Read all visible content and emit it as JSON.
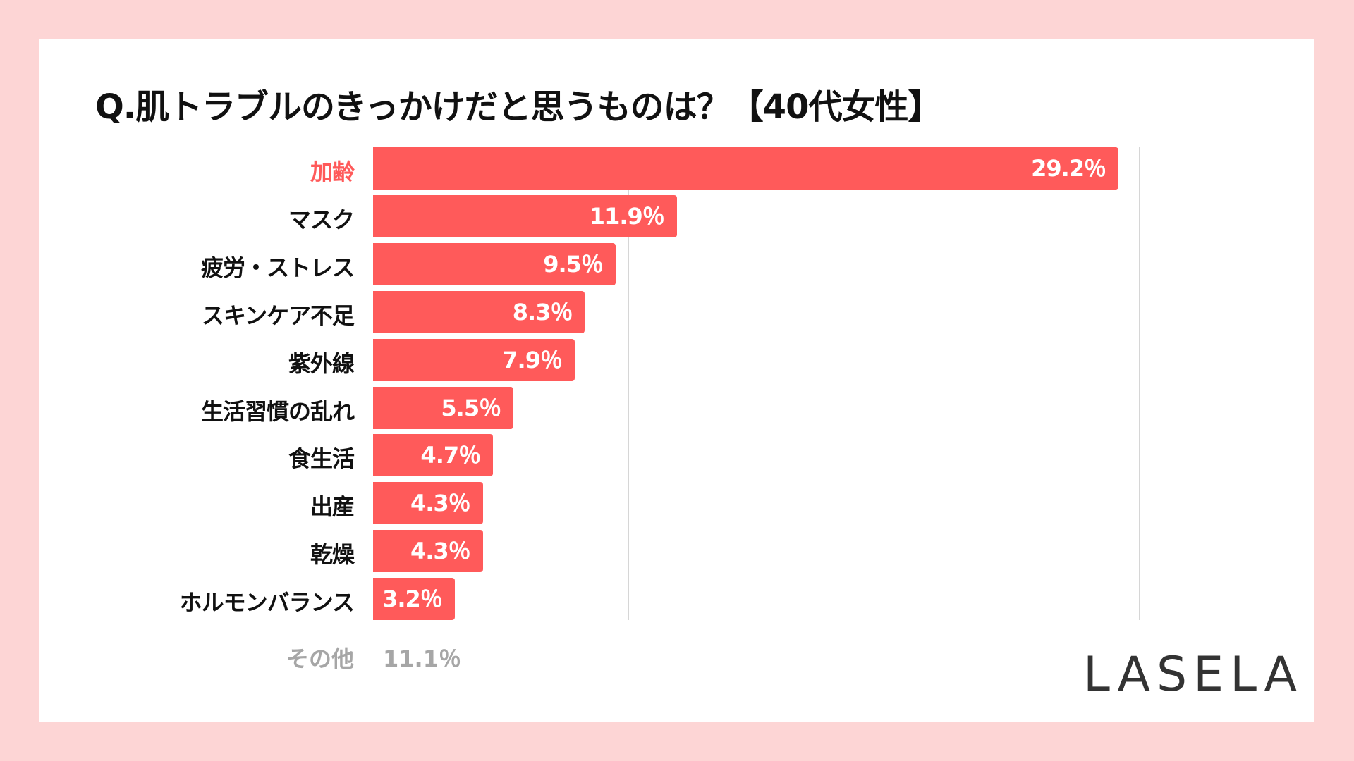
{
  "chart_data": {
    "type": "bar",
    "orientation": "horizontal",
    "title": "Q.肌トラブルのきっかけだと思うものは？【40代女性】",
    "categories": [
      "加齢",
      "マスク",
      "疲労・ストレス",
      "スキンケア不足",
      "紫外線",
      "生活習慣の乱れ",
      "食生活",
      "出産",
      "乾燥",
      "ホルモンバランス"
    ],
    "values": [
      29.2,
      11.9,
      9.5,
      8.3,
      7.9,
      5.5,
      4.7,
      4.3,
      4.3,
      3.2
    ],
    "value_labels": [
      "29.2％",
      "11.9％",
      "9.5％",
      "8.3％",
      "7.9％",
      "5.5％",
      "4.7％",
      "4.3％",
      "4.3％",
      "3.2％"
    ],
    "highlight_category": "加齢",
    "xlim": [
      0,
      30
    ],
    "gridlines": [
      10,
      20,
      30
    ],
    "grid": true,
    "other": {
      "label": "その他",
      "value": 11.1,
      "value_label": "11.1％"
    },
    "xlabel": "",
    "ylabel": ""
  },
  "colors": {
    "bar": "#ff5a5a",
    "highlight_label": "#ff5a5a",
    "background": "#fdd5d5",
    "other_text": "#a6a6a6"
  },
  "brand": {
    "logo": "LASELA"
  }
}
